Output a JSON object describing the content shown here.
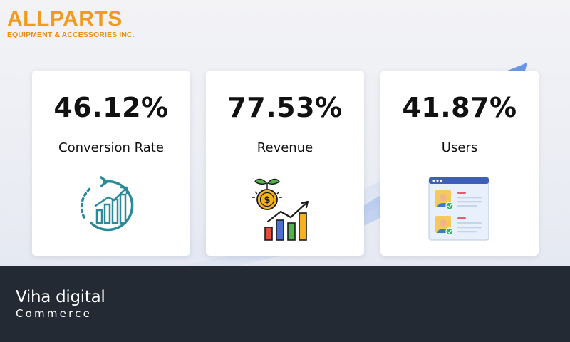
{
  "brand": {
    "name": "ALLPARTS",
    "tagline": "EQUIPMENT & ACCESSORIES INC.",
    "color": "#f29a1f"
  },
  "cards": [
    {
      "value": "46.12%",
      "label": "Conversion Rate",
      "icon": "growth-chart-icon"
    },
    {
      "value": "77.53%",
      "label": "Revenue",
      "icon": "revenue-growth-icon"
    },
    {
      "value": "41.87%",
      "label": "Users",
      "icon": "user-profiles-icon"
    }
  ],
  "footer": {
    "line1": "Viha digital",
    "line2": "Commerce",
    "background": "#232a33"
  }
}
